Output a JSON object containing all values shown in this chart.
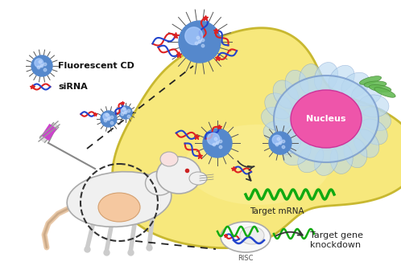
{
  "background_color": "#ffffff",
  "cell_color": "#f7e87c",
  "cell_edge_color": "#c8b830",
  "nucleus_outer_color": "#b8d8f0",
  "nucleus_inner_color": "#ee55aa",
  "nucleus_label": "Nucleus",
  "legend_cd_label": "Fluorescent CD",
  "legend_sirna_label": "siRNA",
  "target_mrna_label": "Target mRNA",
  "target_gene_label": "Target gene\nknockdown",
  "risc_label": "RISC",
  "cd_color": "#5588cc",
  "cd_spike_color": "#555555",
  "sirna_color1": "#dd2222",
  "sirna_color2": "#2244cc",
  "mrna_color": "#11aa11",
  "figsize": [
    4.98,
    3.46
  ],
  "dpi": 100
}
